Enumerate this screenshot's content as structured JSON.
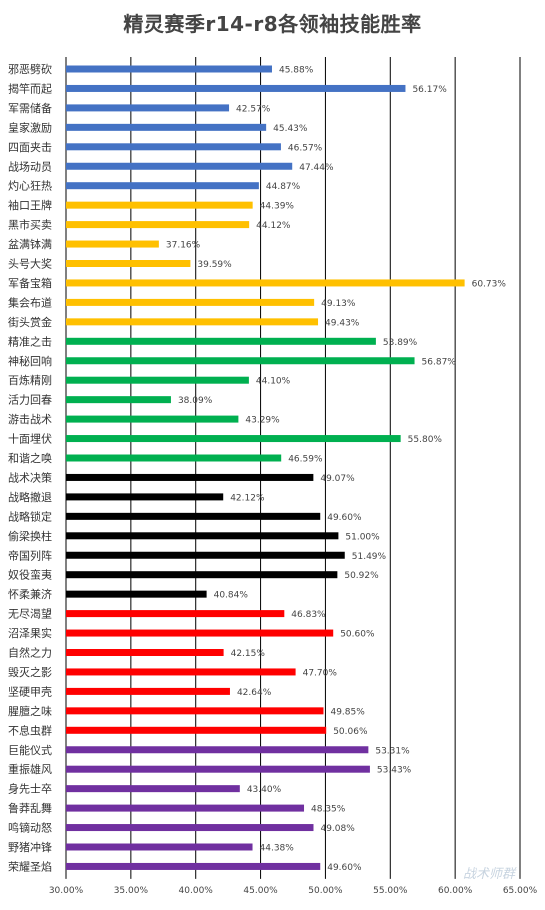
{
  "chart_data": {
    "type": "bar",
    "orientation": "horizontal",
    "title": "精灵赛季r14-r8各领袖技能胜率",
    "xlim": [
      30,
      65
    ],
    "ticks": [
      "30.00%",
      "35.00%",
      "40.00%",
      "45.00%",
      "50.00%",
      "55.00%",
      "60.00%",
      "65.00%"
    ],
    "grid": true,
    "categories": [
      "邪恶劈砍",
      "揭竿而起",
      "军需储备",
      "皇家激励",
      "四面夹击",
      "战场动员",
      "灼心狂热",
      "袖口王牌",
      "黑市买卖",
      "盆满钵满",
      "头号大奖",
      "军备宝箱",
      "集会布道",
      "街头赏金",
      "精准之击",
      "神秘回响",
      "百炼精刚",
      "活力回春",
      "游击战术",
      "十面埋伏",
      "和谐之唤",
      "战术决策",
      "战略撤退",
      "战略锁定",
      "偷梁换柱",
      "帝国列阵",
      "奴役蛮夷",
      "怀柔兼济",
      "无尽渴望",
      "沼泽果实",
      "自然之力",
      "毁灭之影",
      "坚硬甲壳",
      "腥膻之味",
      "不息虫群",
      "巨能仪式",
      "重振雄风",
      "身先士卒",
      "鲁莽乱舞",
      "鸣镝动怒",
      "野猪冲锋",
      "荣耀圣焰"
    ],
    "values": [
      45.88,
      56.17,
      42.57,
      45.43,
      46.57,
      47.44,
      44.87,
      44.39,
      44.12,
      37.16,
      39.59,
      60.73,
      49.13,
      49.43,
      53.89,
      56.87,
      44.1,
      38.09,
      43.29,
      55.8,
      46.59,
      49.07,
      42.12,
      49.6,
      51.0,
      51.49,
      50.92,
      40.84,
      46.83,
      50.6,
      42.15,
      47.7,
      42.64,
      49.85,
      50.06,
      53.31,
      53.43,
      43.4,
      48.35,
      49.08,
      44.38,
      49.6
    ],
    "value_labels": [
      "45.88%",
      "56.17%",
      "42.57%",
      "45.43%",
      "46.57%",
      "47.44%",
      "44.87%",
      "44.39%",
      "44.12%",
      "37.16%",
      "39.59%",
      "60.73%",
      "49.13%",
      "49.43%",
      "53.89%",
      "56.87%",
      "44.10%",
      "38.09%",
      "43.29%",
      "55.80%",
      "46.59%",
      "49.07%",
      "42.12%",
      "49.60%",
      "51.00%",
      "51.49%",
      "50.92%",
      "40.84%",
      "46.83%",
      "50.60%",
      "42.15%",
      "47.70%",
      "42.64%",
      "49.85%",
      "50.06%",
      "53.31%",
      "53.43%",
      "43.40%",
      "48.35%",
      "49.08%",
      "44.38%",
      "49.60%"
    ],
    "group_counts": [
      7,
      7,
      7,
      7,
      7,
      7
    ],
    "group_colors": [
      "#4472C4",
      "#FFC000",
      "#00B050",
      "#000000",
      "#FF0000",
      "#7030A0"
    ]
  },
  "watermark": "战术师群"
}
